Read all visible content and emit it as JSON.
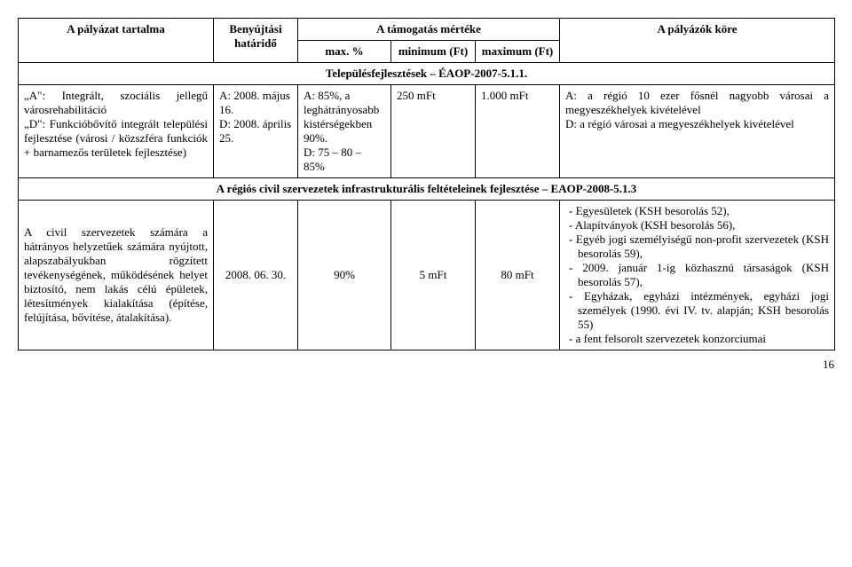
{
  "header": {
    "col1": "A pályázat tartalma",
    "col2": "Benyújtási határidő",
    "col_group": "A támogatás mértéke",
    "col3": "max. %",
    "col4": "minimum (Ft)",
    "col5": "maximum (Ft)",
    "col6": "A pályázók köre"
  },
  "section1": {
    "title": "Településfejlesztések – ÉAOP-2007-5.1.1.",
    "row": {
      "tartalma": "„A\": Integrált, szociális jellegű városrehabilitáció\n„D\": Funkcióbővítő integrált települési fejlesztése (városi / közszféra funkciók + barnamezős területek fejlesztése)",
      "hatarido": "A: 2008. május 16.\nD: 2008. április 25.",
      "max": "A: 85%, a leghátrányosabb kistérségekben 90%.\nD: 75 – 80 – 85%",
      "min": "250 mFt",
      "maxft": "1.000 mFt",
      "kore": "A: a régió 10 ezer fősnél nagyobb városai a megyeszékhelyek kivételével\nD: a régió városai a megyeszékhelyek kivételével"
    }
  },
  "section2": {
    "title": "A régiós civil szervezetek infrastrukturális feltételeinek fejlesztése – EAOP-2008-5.1.3",
    "row": {
      "tartalma": "A civil szervezetek számára a hátrányos helyzetűek számára nyújtott, alapszabályukban rögzített tevékenységének, működésének helyet biztosító, nem lakás célú épületek, létesítmények kialakítása (építése, felújítása, bővítése, átalakítása).",
      "hatarido": "2008. 06. 30.",
      "max": "90%",
      "min": "5 mFt",
      "maxft": "80 mFt",
      "kore_items": [
        "Egyesületek (KSH besorolás 52),",
        "Alapítványok (KSH besorolás 56),",
        "Egyéb jogi személyiségű non-profit szervezetek (KSH besorolás 59),",
        "2009. január 1-ig közhasznú társaságok (KSH besorolás 57),",
        "Egyházak, egyházi intézmények, egyházi jogi személyek (1990. évi IV. tv. alapján; KSH besorolás 55)",
        "a fent felsorolt szervezetek konzorciumai"
      ]
    }
  },
  "page": "16"
}
